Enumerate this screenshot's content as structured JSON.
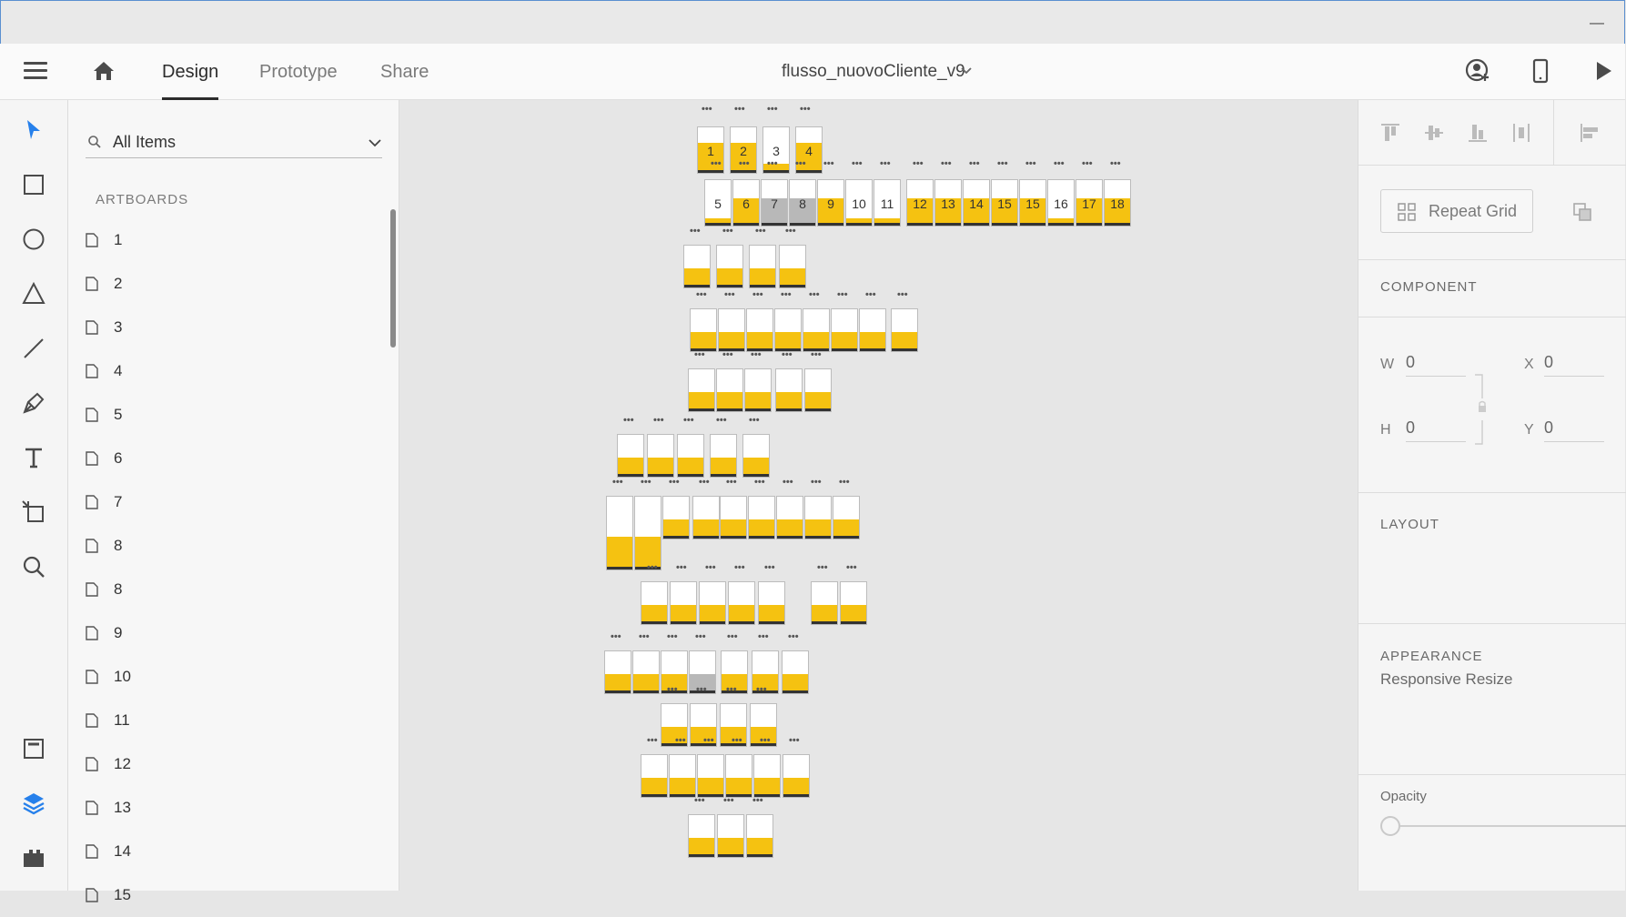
{
  "window": {
    "minimize_glyph": "—"
  },
  "topbar": {
    "menu_icon": "hamburger-menu-icon",
    "home_icon": "home-icon",
    "tabs": [
      {
        "label": "Design",
        "active": true
      },
      {
        "label": "Prototype",
        "active": false
      },
      {
        "label": "Share",
        "active": false
      }
    ],
    "document_title": "flusso_nuovoCliente_v9",
    "right_icons": [
      "invite-user-icon",
      "device-preview-icon",
      "play-icon"
    ]
  },
  "tools": [
    "select-icon",
    "rectangle-icon",
    "ellipse-icon",
    "triangle-icon",
    "line-icon",
    "pen-icon",
    "text-icon",
    "artboard-icon",
    "zoom-icon",
    "assets-icon",
    "layers-icon",
    "plugins-icon"
  ],
  "layers_panel": {
    "filter_value": "All Items",
    "section_title": "ARTBOARDS",
    "artboards": [
      "1",
      "2",
      "3",
      "4",
      "5",
      "6",
      "7",
      "8",
      "8",
      "9",
      "10",
      "11",
      "12",
      "13",
      "14",
      "15"
    ]
  },
  "canvas": {
    "accent_color": "#f5c211",
    "numbered_row_1": [
      "1",
      "2",
      "3",
      "4"
    ],
    "numbered_row_2": [
      "5",
      "6",
      "7",
      "8",
      "9",
      "10",
      "11",
      "12",
      "13",
      "14",
      "15",
      "15",
      "16",
      "17",
      "18"
    ],
    "dots_label": "•••"
  },
  "properties_panel": {
    "repeat_grid_label": "Repeat Grid",
    "component_title": "COMPONENT",
    "w_label": "W",
    "w_value": "0",
    "h_label": "H",
    "h_value": "0",
    "x_label": "X",
    "x_value": "0",
    "y_label": "Y",
    "y_value": "0",
    "layout_title": "LAYOUT",
    "responsive_label": "Responsive Resize",
    "appearance_title": "APPEARANCE",
    "opacity_label": "Opacity",
    "opacity_value": 0
  }
}
